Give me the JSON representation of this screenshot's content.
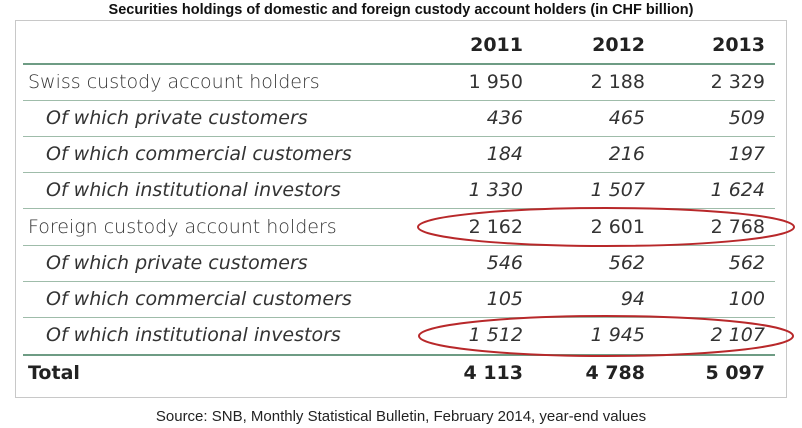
{
  "title": "Securities holdings of domestic and foreign custody account holders (in CHF billion)",
  "table": {
    "columns": [
      "2011",
      "2012",
      "2013"
    ],
    "rows": [
      {
        "label": "Swiss custody account holders",
        "values": [
          "1 950",
          "2 188",
          "2 329"
        ]
      },
      {
        "label": "Of which private customers",
        "values": [
          "436",
          "465",
          "509"
        ]
      },
      {
        "label": "Of which commercial customers",
        "values": [
          "184",
          "216",
          "197"
        ]
      },
      {
        "label": "Of which institutional investors",
        "values": [
          "1 330",
          "1 507",
          "1 624"
        ]
      },
      {
        "label": "Foreign custody account holders",
        "values": [
          "2 162",
          "2 601",
          "2 768"
        ]
      },
      {
        "label": "Of which private customers",
        "values": [
          "546",
          "562",
          "562"
        ]
      },
      {
        "label": "Of which commercial customers",
        "values": [
          "105",
          "94",
          "100"
        ]
      },
      {
        "label": "Of which institutional investors",
        "values": [
          "1 512",
          "1 945",
          "2 107"
        ]
      }
    ],
    "total": {
      "label": "Total",
      "values": [
        "4 113",
        "4 788",
        "5 097"
      ]
    }
  },
  "source": "Source: SNB, Monthly Statistical Bulletin, February 2014, year-end values",
  "colors": {
    "highlight": "#b8282a",
    "rule": "#6e9c84"
  }
}
